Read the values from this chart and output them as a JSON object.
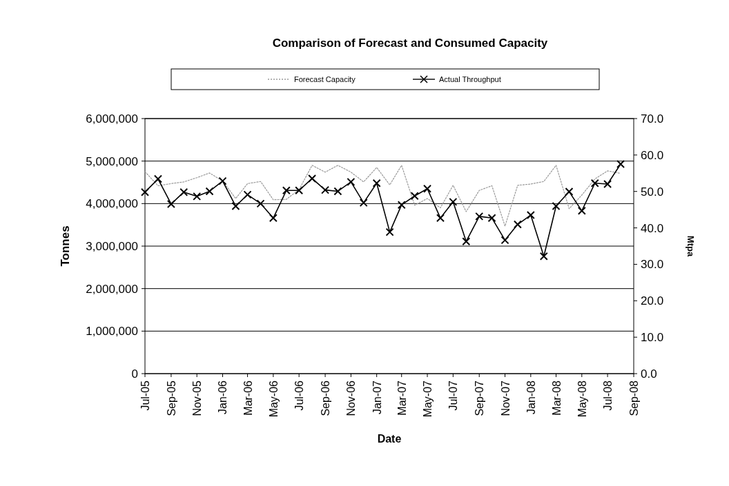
{
  "chart_data": {
    "type": "line",
    "title": "Comparison of Forecast and Consumed Capacity",
    "xlabel": "Date",
    "ylabel": "Tonnes",
    "y2label": "Mtpa",
    "x": [
      "2005-07",
      "2005-08",
      "2005-09",
      "2005-10",
      "2005-11",
      "2005-12",
      "2006-01",
      "2006-02",
      "2006-03",
      "2006-04",
      "2006-05",
      "2006-06",
      "2006-07",
      "2006-08",
      "2006-09",
      "2006-10",
      "2006-11",
      "2006-12",
      "2007-01",
      "2007-02",
      "2007-03",
      "2007-04",
      "2007-05",
      "2007-06",
      "2007-07",
      "2007-08",
      "2007-09",
      "2007-10",
      "2007-11",
      "2007-12",
      "2008-01",
      "2008-02",
      "2008-03",
      "2008-04",
      "2008-05",
      "2008-06",
      "2008-07",
      "2008-08"
    ],
    "series": [
      {
        "name": "Forecast Capacity",
        "color": "#999999",
        "marker": "none",
        "line_style": "dotted",
        "values": [
          4750000,
          4420000,
          4470000,
          4510000,
          4610000,
          4720000,
          4530000,
          4120000,
          4470000,
          4520000,
          4090000,
          4100000,
          4330000,
          4900000,
          4740000,
          4900000,
          4740000,
          4510000,
          4850000,
          4440000,
          4900000,
          3960000,
          4120000,
          3900000,
          4430000,
          3810000,
          4310000,
          4420000,
          3470000,
          4430000,
          4460000,
          4520000,
          4900000,
          3880000,
          4200000,
          4580000,
          4770000,
          4710000
        ]
      },
      {
        "name": "Actual Throughput",
        "color": "#000000",
        "marker": "cross",
        "line_style": "solid",
        "values": [
          4270000,
          4580000,
          3990000,
          4270000,
          4170000,
          4290000,
          4530000,
          3940000,
          4210000,
          4000000,
          3660000,
          4310000,
          4310000,
          4590000,
          4320000,
          4290000,
          4510000,
          4020000,
          4480000,
          3330000,
          3970000,
          4180000,
          4350000,
          3660000,
          4040000,
          3110000,
          3700000,
          3660000,
          3140000,
          3510000,
          3730000,
          2760000,
          3940000,
          4280000,
          3830000,
          4480000,
          4460000,
          4930000
        ]
      }
    ],
    "xlim": [
      "2005-07",
      "2008-09"
    ],
    "xticks": [
      {
        "value": "2005-07",
        "label": "Jul-05"
      },
      {
        "value": "2005-09",
        "label": "Sep-05"
      },
      {
        "value": "2005-11",
        "label": "Nov-05"
      },
      {
        "value": "2006-01",
        "label": "Jan-06"
      },
      {
        "value": "2006-03",
        "label": "Mar-06"
      },
      {
        "value": "2006-05",
        "label": "May-06"
      },
      {
        "value": "2006-07",
        "label": "Jul-06"
      },
      {
        "value": "2006-09",
        "label": "Sep-06"
      },
      {
        "value": "2006-11",
        "label": "Nov-06"
      },
      {
        "value": "2007-01",
        "label": "Jan-07"
      },
      {
        "value": "2007-03",
        "label": "Mar-07"
      },
      {
        "value": "2007-05",
        "label": "May-07"
      },
      {
        "value": "2007-07",
        "label": "Jul-07"
      },
      {
        "value": "2007-09",
        "label": "Sep-07"
      },
      {
        "value": "2007-11",
        "label": "Nov-07"
      },
      {
        "value": "2008-01",
        "label": "Jan-08"
      },
      {
        "value": "2008-03",
        "label": "Mar-08"
      },
      {
        "value": "2008-05",
        "label": "May-08"
      },
      {
        "value": "2008-07",
        "label": "Jul-08"
      },
      {
        "value": "2008-09",
        "label": "Sep-08"
      }
    ],
    "ylim": [
      0,
      6000000
    ],
    "yticks": [
      0,
      {
        "value": 1000000,
        "label": "1,000,000"
      },
      {
        "value": 2000000,
        "label": "2,000,000"
      },
      {
        "value": 3000000,
        "label": "3,000,000"
      },
      {
        "value": 4000000,
        "label": "4,000,000"
      },
      {
        "value": 5000000,
        "label": "5,000,000"
      },
      {
        "value": 6000000,
        "label": "6,000,000"
      }
    ],
    "y2lim": [
      0,
      70
    ],
    "y2ticks": [
      {
        "value": 0,
        "label": "0.0"
      },
      {
        "value": 10,
        "label": "10.0"
      },
      {
        "value": 20,
        "label": "20.0"
      },
      {
        "value": 30,
        "label": "30.0"
      },
      {
        "value": 40,
        "label": "40.0"
      },
      {
        "value": 50,
        "label": "50.0"
      },
      {
        "value": 60,
        "label": "60.0"
      },
      {
        "value": 70,
        "label": "70.0"
      }
    ],
    "grid": "y",
    "legend": "top"
  }
}
